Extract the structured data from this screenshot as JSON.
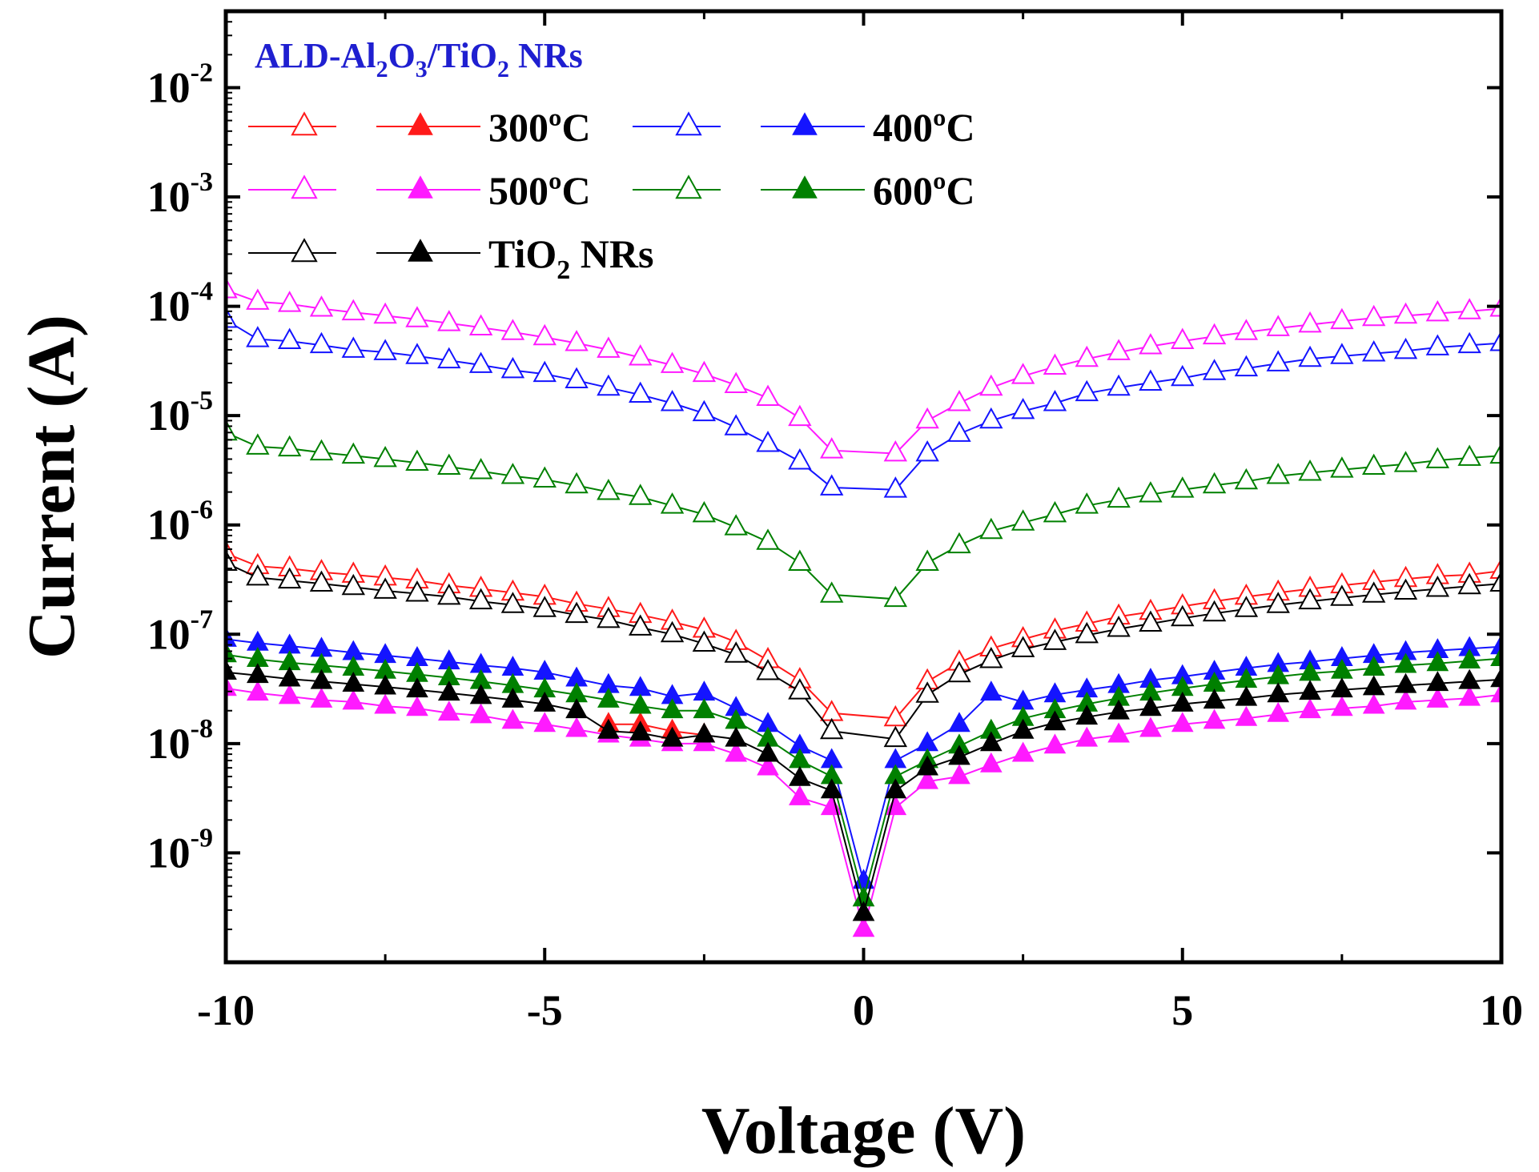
{
  "chart_data": {
    "type": "line",
    "xlabel": "Voltage (V)",
    "ylabel": "Current (A)",
    "xlim": [
      -10,
      10
    ],
    "ylim": [
      1e-10,
      0.05
    ],
    "yscale": "log",
    "x_ticks": [
      -10,
      -5,
      0,
      5,
      10
    ],
    "x_tick_labels": [
      "-10",
      "-5",
      "0",
      "5",
      "10"
    ],
    "y_ticks": [
      1e-09,
      1e-08,
      1e-07,
      1e-06,
      1e-05,
      0.0001,
      0.001,
      0.01
    ],
    "y_tick_labels": [
      {
        "base": "10",
        "exp": "-9"
      },
      {
        "base": "10",
        "exp": "-8"
      },
      {
        "base": "10",
        "exp": "-7"
      },
      {
        "base": "10",
        "exp": "-6"
      },
      {
        "base": "10",
        "exp": "-5"
      },
      {
        "base": "10",
        "exp": "-4"
      },
      {
        "base": "10",
        "exp": "-3"
      },
      {
        "base": "10",
        "exp": "-2"
      }
    ],
    "grid": false,
    "legend": {
      "title": {
        "parts": [
          "ALD-Al",
          "2",
          "O",
          "3",
          "/TiO",
          "2",
          " NRs"
        ]
      },
      "entries": [
        {
          "label": "300ºC",
          "color": "#ff1a1a"
        },
        {
          "label": "400ºC",
          "color": "#1414ff"
        },
        {
          "label": "500ºC",
          "color": "#ff1aff"
        },
        {
          "label": "600ºC",
          "color": "#008000"
        },
        {
          "label": "TiO2 NRs",
          "label_parts": [
            "TiO",
            "2",
            " NRs"
          ],
          "color": "#000000"
        }
      ],
      "placement": "top-left"
    },
    "series": [
      {
        "name": "300ºC",
        "marker": "open-triangle",
        "color": "#ff1a1a",
        "x": [
          -10,
          -9.5,
          -9,
          -8.5,
          -8,
          -7.5,
          -7,
          -6.5,
          -6,
          -5.5,
          -5,
          -4.5,
          -4,
          -3.5,
          -3,
          -2.5,
          -2,
          -1.5,
          -1,
          -0.5,
          0.5,
          1,
          1.5,
          2,
          2.5,
          3,
          3.5,
          4,
          4.5,
          5,
          5.5,
          6,
          6.5,
          7,
          7.5,
          8,
          8.5,
          9,
          9.5,
          10
        ],
        "y": [
          5.5e-07,
          4.2e-07,
          4e-07,
          3.7e-07,
          3.5e-07,
          3.3e-07,
          3.1e-07,
          2.8e-07,
          2.6e-07,
          2.4e-07,
          2.2e-07,
          1.9e-07,
          1.7e-07,
          1.5e-07,
          1.3e-07,
          1.1e-07,
          8.5e-08,
          5.8e-08,
          3.8e-08,
          1.9e-08,
          1.7e-08,
          3.7e-08,
          5.5e-08,
          7.4e-08,
          9e-08,
          1.08e-07,
          1.25e-07,
          1.45e-07,
          1.6e-07,
          1.8e-07,
          2e-07,
          2.2e-07,
          2.4e-07,
          2.6e-07,
          2.8e-07,
          3e-07,
          3.2e-07,
          3.4e-07,
          3.5e-07,
          3.8e-07
        ]
      },
      {
        "name": "300ºC",
        "marker": "filled-triangle",
        "color": "#ff1a1a",
        "x": [
          -4,
          -3.5,
          -3,
          -2.5
        ],
        "y": [
          1.5e-08,
          1.5e-08,
          1.3e-08,
          1.2e-08
        ]
      },
      {
        "name": "400ºC",
        "marker": "open-triangle",
        "color": "#1414ff",
        "x": [
          -10,
          -9.5,
          -9,
          -8.5,
          -8,
          -7.5,
          -7,
          -6.5,
          -6,
          -5.5,
          -5,
          -4.5,
          -4,
          -3.5,
          -3,
          -2.5,
          -2,
          -1.5,
          -1,
          -0.5,
          0.5,
          1,
          1.5,
          2,
          2.5,
          3,
          3.5,
          4,
          4.5,
          5,
          5.5,
          6,
          6.5,
          7,
          7.5,
          8,
          8.5,
          9,
          9.5,
          10
        ],
        "y": [
          7.5e-05,
          5e-05,
          4.8e-05,
          4.4e-05,
          4e-05,
          3.8e-05,
          3.5e-05,
          3.2e-05,
          2.9e-05,
          2.6e-05,
          2.4e-05,
          2.1e-05,
          1.8e-05,
          1.55e-05,
          1.3e-05,
          1.05e-05,
          7.8e-06,
          5.5e-06,
          3.8e-06,
          2.2e-06,
          2.1e-06,
          4.5e-06,
          6.8e-06,
          9e-06,
          1.1e-05,
          1.3e-05,
          1.6e-05,
          1.8e-05,
          2e-05,
          2.2e-05,
          2.5e-05,
          2.7e-05,
          3e-05,
          3.3e-05,
          3.5e-05,
          3.7e-05,
          3.9e-05,
          4.2e-05,
          4.4e-05,
          4.6e-05
        ]
      },
      {
        "name": "400ºC",
        "marker": "filled-triangle",
        "color": "#1414ff",
        "x": [
          -10,
          -9.5,
          -9,
          -8.5,
          -8,
          -7.5,
          -7,
          -6.5,
          -6,
          -5.5,
          -5,
          -4.5,
          -4,
          -3.5,
          -3,
          -2.5,
          -2,
          -1.5,
          -1,
          -0.5,
          0,
          0.5,
          1,
          1.5,
          2,
          2.5,
          3,
          3.5,
          4,
          4.5,
          5,
          5.5,
          6,
          6.5,
          7,
          7.5,
          8,
          8.5,
          9,
          9.5,
          10
        ],
        "y": [
          9e-08,
          8.3e-08,
          7.8e-08,
          7.3e-08,
          6.8e-08,
          6.4e-08,
          6e-08,
          5.6e-08,
          5.2e-08,
          4.9e-08,
          4.5e-08,
          3.9e-08,
          3.4e-08,
          3.2e-08,
          2.7e-08,
          2.9e-08,
          2.1e-08,
          1.5e-08,
          9.5e-09,
          7e-09,
          5.5e-10,
          7e-09,
          1e-08,
          1.5e-08,
          2.9e-08,
          2.4e-08,
          2.8e-08,
          3.1e-08,
          3.4e-08,
          3.8e-08,
          4.1e-08,
          4.5e-08,
          4.9e-08,
          5.3e-08,
          5.6e-08,
          6e-08,
          6.4e-08,
          6.8e-08,
          7.1e-08,
          7.4e-08,
          7.7e-08
        ]
      },
      {
        "name": "500ºC",
        "marker": "open-triangle",
        "color": "#ff1aff",
        "x": [
          -10,
          -9.5,
          -9,
          -8.5,
          -8,
          -7.5,
          -7,
          -6.5,
          -6,
          -5.5,
          -5,
          -4.5,
          -4,
          -3.5,
          -3,
          -2.5,
          -2,
          -1.5,
          -1,
          -0.5,
          0.5,
          1,
          1.5,
          2,
          2.5,
          3,
          3.5,
          4,
          4.5,
          5,
          5.5,
          6,
          6.5,
          7,
          7.5,
          8,
          8.5,
          9,
          9.5,
          10
        ],
        "y": [
          0.00014,
          0.00011,
          0.000105,
          9.5e-05,
          8.8e-05,
          8.2e-05,
          7.6e-05,
          7e-05,
          6.4e-05,
          5.8e-05,
          5.2e-05,
          4.6e-05,
          4e-05,
          3.4e-05,
          2.9e-05,
          2.4e-05,
          1.9e-05,
          1.45e-05,
          9.5e-06,
          4.8e-06,
          4.5e-06,
          9e-06,
          1.3e-05,
          1.8e-05,
          2.3e-05,
          2.8e-05,
          3.3e-05,
          3.8e-05,
          4.3e-05,
          4.8e-05,
          5.3e-05,
          5.8e-05,
          6.3e-05,
          6.8e-05,
          7.3e-05,
          7.8e-05,
          8.2e-05,
          8.6e-05,
          9e-05,
          9.5e-05
        ]
      },
      {
        "name": "500ºC",
        "marker": "filled-triangle",
        "color": "#ff1aff",
        "x": [
          -10,
          -9.5,
          -9,
          -8.5,
          -8,
          -7.5,
          -7,
          -6.5,
          -6,
          -5.5,
          -5,
          -4.5,
          -4,
          -3.5,
          -3,
          -2.5,
          -2,
          -1.5,
          -1,
          -0.5,
          0,
          0.5,
          1,
          1.5,
          2,
          2.5,
          3,
          3.5,
          4,
          4.5,
          5,
          5.5,
          6,
          6.5,
          7,
          7.5,
          8,
          8.5,
          9,
          9.5,
          10
        ],
        "y": [
          3.2e-08,
          2.9e-08,
          2.7e-08,
          2.5e-08,
          2.4e-08,
          2.2e-08,
          2.1e-08,
          1.9e-08,
          1.8e-08,
          1.6e-08,
          1.5e-08,
          1.35e-08,
          1.2e-08,
          1.1e-08,
          1e-08,
          1e-08,
          8e-09,
          6e-09,
          3.2e-09,
          2.6e-09,
          2e-10,
          2.6e-09,
          4.5e-09,
          5e-09,
          6.4e-09,
          8e-09,
          9.5e-09,
          1.1e-08,
          1.2e-08,
          1.35e-08,
          1.5e-08,
          1.6e-08,
          1.7e-08,
          1.85e-08,
          2e-08,
          2.1e-08,
          2.2e-08,
          2.4e-08,
          2.5e-08,
          2.6e-08,
          2.8e-08
        ]
      },
      {
        "name": "600ºC",
        "marker": "open-triangle",
        "color": "#008000",
        "x": [
          -10,
          -9.5,
          -9,
          -8.5,
          -8,
          -7.5,
          -7,
          -6.5,
          -6,
          -5.5,
          -5,
          -4.5,
          -4,
          -3.5,
          -3,
          -2.5,
          -2,
          -1.5,
          -1,
          -0.5,
          0.5,
          1,
          1.5,
          2,
          2.5,
          3,
          3.5,
          4,
          4.5,
          5,
          5.5,
          6,
          6.5,
          7,
          7.5,
          8,
          8.5,
          9,
          9.5,
          10
        ],
        "y": [
          7e-06,
          5.2e-06,
          5e-06,
          4.6e-06,
          4.3e-06,
          4e-06,
          3.7e-06,
          3.4e-06,
          3.1e-06,
          2.8e-06,
          2.6e-06,
          2.3e-06,
          2e-06,
          1.8e-06,
          1.5e-06,
          1.25e-06,
          9.5e-07,
          7e-07,
          4.5e-07,
          2.3e-07,
          2.1e-07,
          4.5e-07,
          6.5e-07,
          8.8e-07,
          1.05e-06,
          1.25e-06,
          1.5e-06,
          1.7e-06,
          1.9e-06,
          2.1e-06,
          2.3e-06,
          2.5e-06,
          2.8e-06,
          3e-06,
          3.2e-06,
          3.4e-06,
          3.6e-06,
          3.9e-06,
          4.1e-06,
          4.3e-06
        ]
      },
      {
        "name": "600ºC",
        "marker": "filled-triangle",
        "color": "#008000",
        "x": [
          -10,
          -9.5,
          -9,
          -8.5,
          -8,
          -7.5,
          -7,
          -6.5,
          -6,
          -5.5,
          -5,
          -4.5,
          -4,
          -3.5,
          -3,
          -2.5,
          -2,
          -1.5,
          -1,
          -0.5,
          0,
          0.5,
          1,
          1.5,
          2,
          2.5,
          3,
          3.5,
          4,
          4.5,
          5,
          5.5,
          6,
          6.5,
          7,
          7.5,
          8,
          8.5,
          9,
          9.5,
          10
        ],
        "y": [
          6.5e-08,
          5.9e-08,
          5.5e-08,
          5.2e-08,
          4.9e-08,
          4.6e-08,
          4.3e-08,
          4e-08,
          3.7e-08,
          3.4e-08,
          3.1e-08,
          2.8e-08,
          2.5e-08,
          2.2e-08,
          2e-08,
          2e-08,
          1.6e-08,
          1.1e-08,
          7e-09,
          5e-09,
          3.8e-10,
          5e-09,
          7e-09,
          9.5e-09,
          1.3e-08,
          1.7e-08,
          2e-08,
          2.3e-08,
          2.6e-08,
          2.9e-08,
          3.2e-08,
          3.5e-08,
          3.8e-08,
          4.1e-08,
          4.4e-08,
          4.6e-08,
          4.9e-08,
          5.2e-08,
          5.4e-08,
          5.7e-08,
          6e-08
        ]
      },
      {
        "name": "TiO2 NRs",
        "marker": "open-triangle",
        "color": "#000000",
        "x": [
          -10,
          -9.5,
          -9,
          -8.5,
          -8,
          -7.5,
          -7,
          -6.5,
          -6,
          -5.5,
          -5,
          -4.5,
          -4,
          -3.5,
          -3,
          -2.5,
          -2,
          -1.5,
          -1,
          -0.5,
          0.5,
          1,
          1.5,
          2,
          2.5,
          3,
          3.5,
          4,
          4.5,
          5,
          5.5,
          6,
          6.5,
          7,
          7.5,
          8,
          8.5,
          9,
          9.5,
          10
        ],
        "y": [
          4.5e-07,
          3.3e-07,
          3.1e-07,
          2.9e-07,
          2.7e-07,
          2.5e-07,
          2.35e-07,
          2.2e-07,
          2e-07,
          1.85e-07,
          1.7e-07,
          1.5e-07,
          1.35e-07,
          1.15e-07,
          1e-07,
          8.2e-08,
          6.5e-08,
          4.5e-08,
          3e-08,
          1.3e-08,
          1.1e-08,
          2.8e-08,
          4.3e-08,
          5.8e-08,
          7.3e-08,
          8.5e-08,
          9.8e-08,
          1.12e-07,
          1.25e-07,
          1.4e-07,
          1.55e-07,
          1.7e-07,
          1.85e-07,
          2e-07,
          2.15e-07,
          2.3e-07,
          2.45e-07,
          2.6e-07,
          2.75e-07,
          2.9e-07
        ]
      },
      {
        "name": "TiO2 NRs",
        "marker": "filled-triangle",
        "color": "#000000",
        "x": [
          -10,
          -9.5,
          -9,
          -8.5,
          -8,
          -7.5,
          -7,
          -6.5,
          -6,
          -5.5,
          -5,
          -4.5,
          -4,
          -3.5,
          -3,
          -2.5,
          -2,
          -1.5,
          -1,
          -0.5,
          0,
          0.5,
          1,
          1.5,
          2,
          2.5,
          3,
          3.5,
          4,
          4.5,
          5,
          5.5,
          6,
          6.5,
          7,
          7.5,
          8,
          8.5,
          9,
          9.5,
          10
        ],
        "y": [
          4.5e-08,
          4.2e-08,
          3.9e-08,
          3.7e-08,
          3.5e-08,
          3.3e-08,
          3.1e-08,
          2.9e-08,
          2.7e-08,
          2.5e-08,
          2.3e-08,
          2e-08,
          1.3e-08,
          1.25e-08,
          1.1e-08,
          1.2e-08,
          1.1e-08,
          8e-09,
          4.8e-09,
          3.7e-09,
          2.8e-10,
          3.7e-09,
          6e-09,
          7.5e-09,
          1e-08,
          1.3e-08,
          1.55e-08,
          1.75e-08,
          1.95e-08,
          2.1e-08,
          2.3e-08,
          2.45e-08,
          2.6e-08,
          2.8e-08,
          2.95e-08,
          3.1e-08,
          3.25e-08,
          3.4e-08,
          3.55e-08,
          3.7e-08,
          3.85e-08
        ]
      }
    ]
  }
}
